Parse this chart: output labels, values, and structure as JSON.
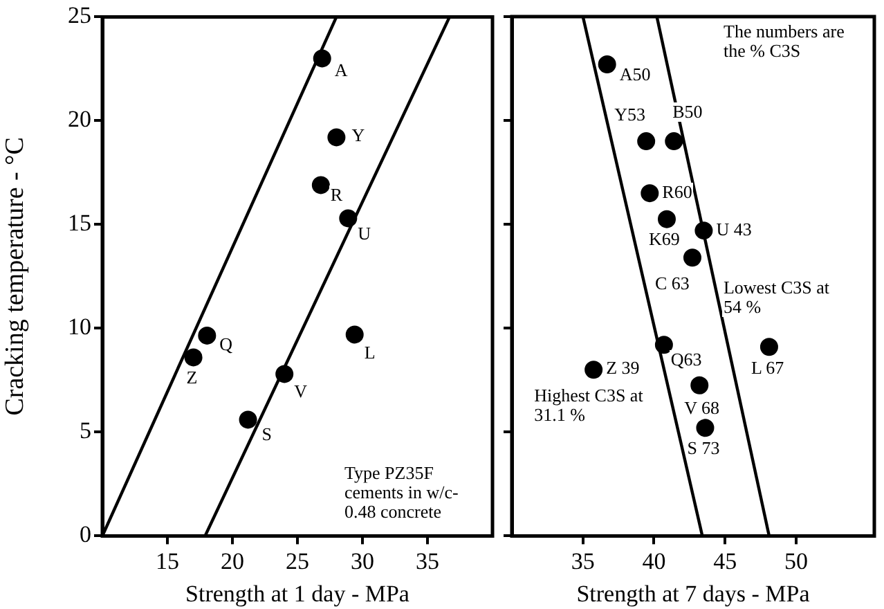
{
  "chart_data": [
    {
      "type": "scatter",
      "xlabel": "Strength at 1 day - MPa",
      "ylabel": "Cracking temperature - °C",
      "xlim": [
        10,
        40
      ],
      "xticks": [
        15,
        20,
        25,
        30,
        35
      ],
      "ylim": [
        0,
        25
      ],
      "yticks": [
        0,
        5,
        10,
        15,
        20,
        25
      ],
      "grid": false,
      "legend": false,
      "series": [
        {
          "marker": "circle",
          "color": "#000000",
          "x": [
            26.9,
            28.0,
            26.8,
            28.9,
            29.4,
            18.05,
            17.0,
            24.0,
            21.2
          ],
          "values": [
            23.0,
            19.2,
            16.9,
            15.3,
            9.7,
            9.65,
            8.6,
            7.8,
            5.6
          ]
        },
        {
          "type": "line",
          "marker": "none",
          "color": "#000000",
          "x": [
            10,
            28
          ],
          "values": [
            0,
            25
          ]
        },
        {
          "type": "line",
          "marker": "none",
          "color": "#000000",
          "x": [
            17.9,
            36.7
          ],
          "values": [
            0,
            25
          ]
        }
      ],
      "annotations": [
        {
          "text": "A",
          "x": 26.9,
          "y": 23.0
        },
        {
          "text": "Y",
          "x": 28.0,
          "y": 19.2
        },
        {
          "text": "R",
          "x": 26.8,
          "y": 16.9
        },
        {
          "text": "U",
          "x": 28.9,
          "y": 15.3
        },
        {
          "text": "L",
          "x": 29.4,
          "y": 9.7
        },
        {
          "text": "Q",
          "x": 18.05,
          "y": 9.65
        },
        {
          "text": "Z",
          "x": 17.0,
          "y": 8.6
        },
        {
          "text": "V",
          "x": 24.0,
          "y": 7.8
        },
        {
          "text": "S",
          "x": 21.2,
          "y": 5.6
        },
        "Type PZ35F cements in w/c- 0.48 concrete"
      ]
    },
    {
      "type": "scatter",
      "xlabel": "Strength at 7 days - MPa",
      "xlim": [
        30,
        55.5
      ],
      "xticks": [
        35,
        40,
        45,
        50
      ],
      "ylim": [
        0,
        25
      ],
      "yticks": [
        0,
        5,
        10,
        15,
        20,
        25
      ],
      "tick_labels": "x",
      "grid": false,
      "legend": false,
      "series": [
        {
          "marker": "circle",
          "color": "#000000",
          "x": [
            36.7,
            39.45,
            41.4,
            39.7,
            40.9,
            43.5,
            42.7,
            40.7,
            48.1,
            35.75,
            43.2,
            43.6
          ],
          "values": [
            22.7,
            19.0,
            19.0,
            16.5,
            15.25,
            14.7,
            13.4,
            9.2,
            9.1,
            8.0,
            7.25,
            5.2
          ]
        },
        {
          "type": "line",
          "marker": "none",
          "color": "#000000",
          "x": [
            35.0,
            43.4
          ],
          "values": [
            25,
            0
          ]
        },
        {
          "type": "line",
          "marker": "none",
          "color": "#000000",
          "x": [
            40.2,
            48.1
          ],
          "values": [
            25,
            0
          ]
        }
      ],
      "annotations": [
        {
          "text": "A50",
          "x": 36.7,
          "y": 22.7
        },
        {
          "text": "Y53",
          "x": 39.45,
          "y": 19.0
        },
        {
          "text": "B50",
          "x": 41.4,
          "y": 19.0
        },
        {
          "text": "R60",
          "x": 39.7,
          "y": 16.5
        },
        {
          "text": "K69",
          "x": 40.9,
          "y": 15.25
        },
        {
          "text": "U 43",
          "x": 43.5,
          "y": 14.7
        },
        {
          "text": "C 63",
          "x": 42.7,
          "y": 13.4
        },
        {
          "text": "Q63",
          "x": 40.7,
          "y": 9.2
        },
        {
          "text": "L 67",
          "x": 48.1,
          "y": 9.1
        },
        {
          "text": "Z 39",
          "x": 35.75,
          "y": 8.0
        },
        {
          "text": "V 68",
          "x": 43.2,
          "y": 7.25
        },
        {
          "text": "S 73",
          "x": 43.6,
          "y": 5.2
        },
        {
          "text": "Lowest C3S at 54 %",
          "x": 48.1,
          "y": 9.1
        },
        {
          "text": "Highest C3S at 31.1 %",
          "x": 35.75,
          "y": 8.0
        },
        "The numbers are the % C3S"
      ]
    }
  ]
}
